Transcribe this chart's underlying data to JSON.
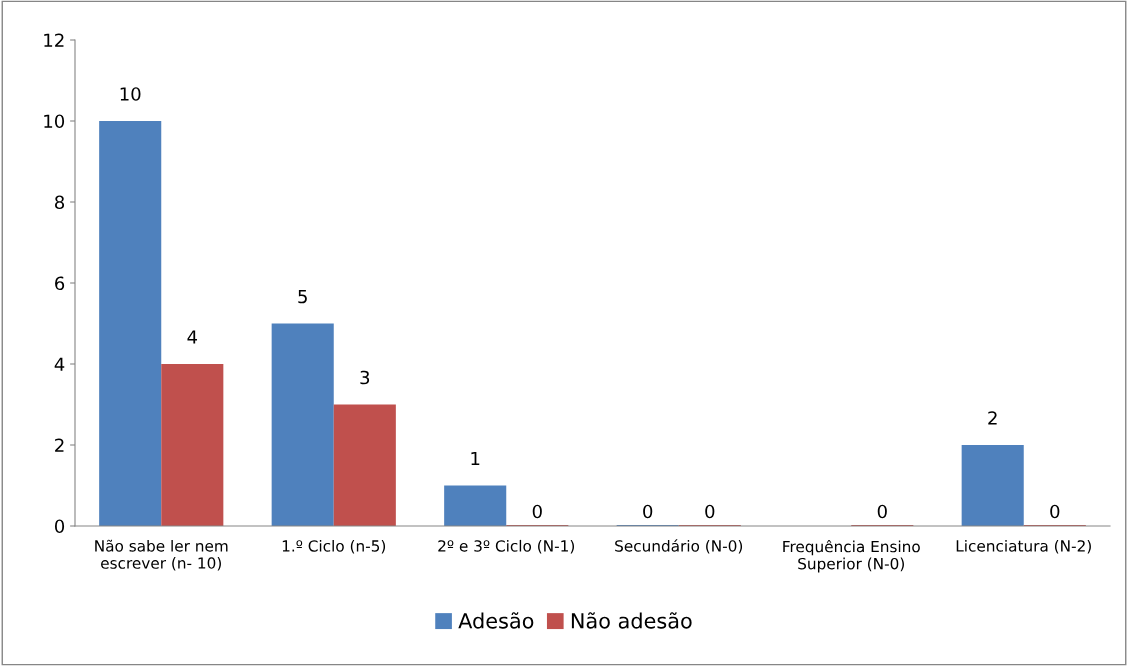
{
  "chart_data": {
    "type": "bar",
    "categories": [
      "Não sabe ler nem\nescrever (n- 10)",
      "1.º Ciclo (n-5)",
      "2º e 3º Ciclo (N-1)",
      "Secundário (N-0)",
      "Frequência Ensino\nSuperior (N-0)",
      "Licenciatura (N-2)"
    ],
    "series": [
      {
        "name": "Adesão",
        "color": "#4f81bd",
        "values": [
          10,
          5,
          1,
          0,
          null,
          2
        ]
      },
      {
        "name": "Não adesão",
        "color": "#c0504d",
        "values": [
          4,
          3,
          0,
          0,
          0,
          0
        ]
      }
    ],
    "ylim": [
      0,
      12
    ],
    "yticks": [
      0,
      2,
      4,
      6,
      8,
      10,
      12
    ],
    "data_labels": true,
    "grid": false,
    "legend": "bottom"
  }
}
